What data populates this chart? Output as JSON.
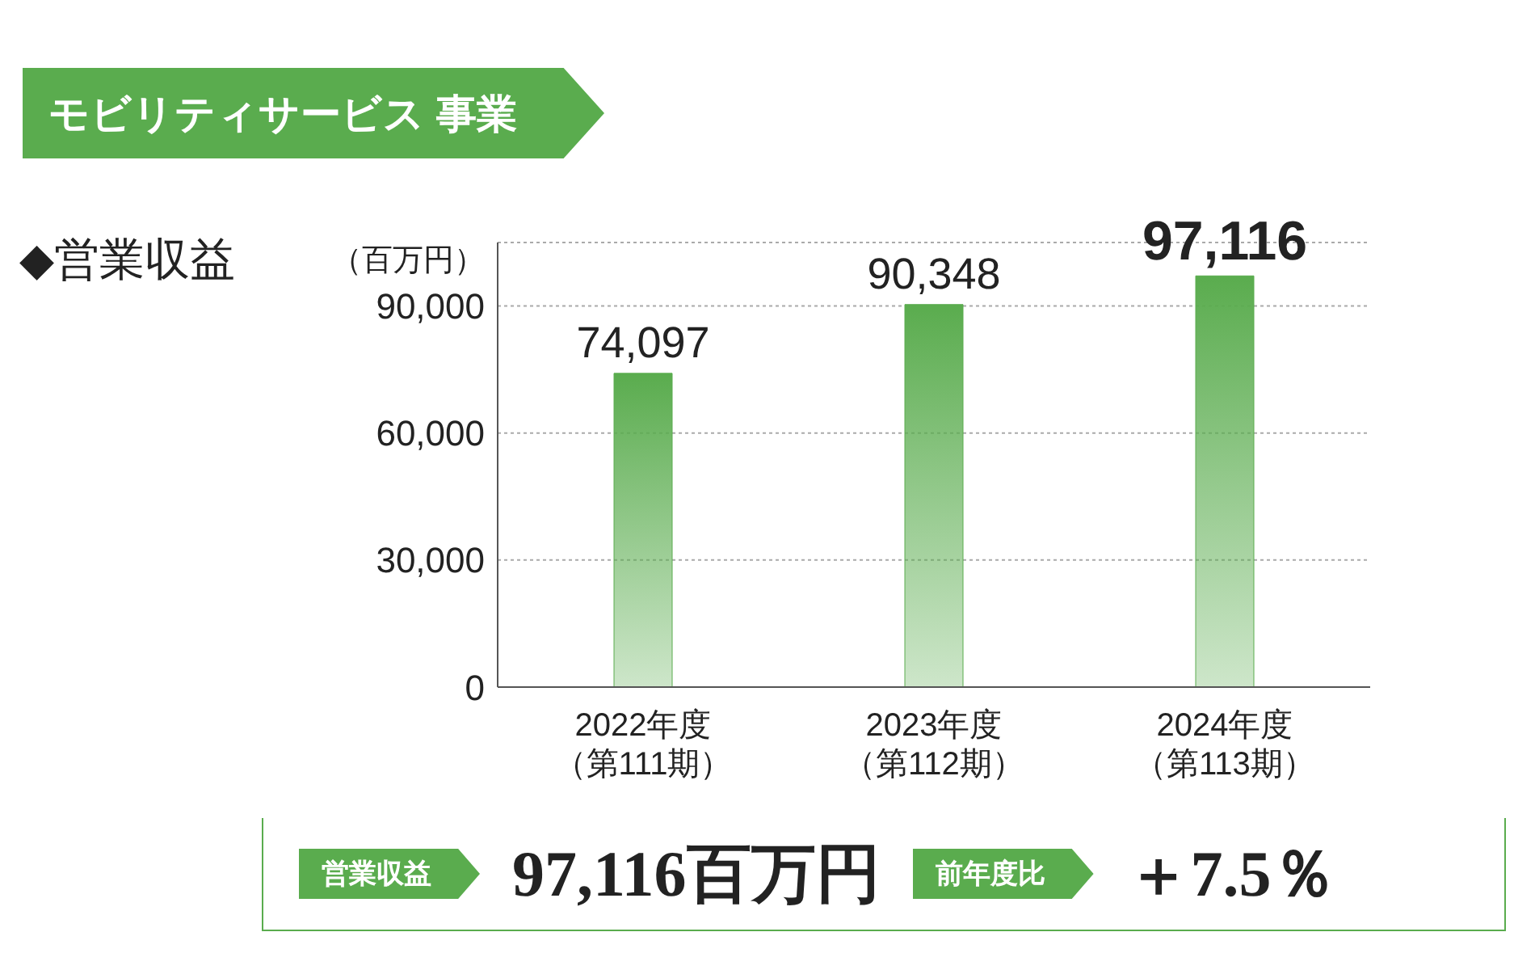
{
  "chart_data": {
    "type": "bar",
    "title": "モビリティサービス 事業",
    "subtitle": "◆営業収益",
    "ylabel": "（百万円）",
    "categories": [
      "2022年度（第111期）",
      "2023年度（第112期）",
      "2024年度（第113期）"
    ],
    "values": [
      74097,
      90348,
      97116
    ],
    "value_labels": [
      "74,097",
      "90,348",
      "97,116"
    ],
    "color": "#5aac4e",
    "ylim": [
      0,
      105000
    ],
    "yticks": [
      0,
      {
        "value": 30000,
        "label": "30,000"
      },
      {
        "value": 60000,
        "label": "60,000"
      },
      {
        "value": 90000,
        "label": "90,000"
      }
    ],
    "grid": "y",
    "annotations": [
      "営業収益",
      "97,116百万円",
      "前年度比",
      "＋7.5％"
    ]
  }
}
